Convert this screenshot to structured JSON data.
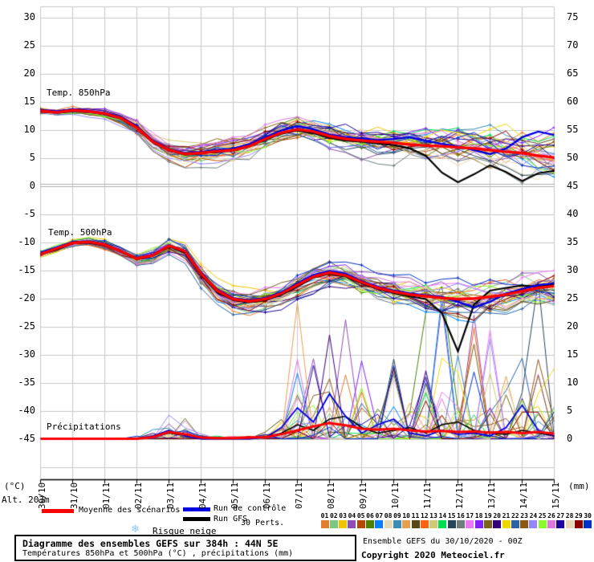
{
  "labels": {
    "temp850": "Temp. 850hPa",
    "temp500": "Temp. 500hPa",
    "precip": "Précipitations",
    "unit_left": "(°C)",
    "unit_right": "(mm)",
    "altitude": "Alt. 203m",
    "risque_neige": "Risque neige",
    "legend_mean": "Moyenne des scénarios",
    "legend_control": "Run de contrôle",
    "legend_gfs": "Run GFS",
    "legend_perts": "30 Perts.",
    "title": "Diagramme des ensembles GEFS sur 384h : 44N 5E",
    "subtitle": "Températures 850hPa et 500hPa (°C) , précipitations (mm)",
    "run_info": "Ensemble GEFS du 30/10/2020 - 00Z",
    "copyright": "Copyright 2020 Meteociel.fr"
  },
  "icons": {
    "snowflake": "❄"
  },
  "colors": {
    "mean": "#FF0000",
    "control": "#0000E0",
    "gfs": "#000000",
    "grid": "#C9C9C9",
    "grid_zero": "#ADADAD",
    "axis": "#000000",
    "snowflake": "#8CC8F0"
  },
  "axes": {
    "left_unit": "°C",
    "right_unit": "mm",
    "left_ticks": [
      30,
      25,
      20,
      15,
      10,
      5,
      0,
      -5,
      -10,
      -15,
      -20,
      -25,
      -30,
      -35,
      -40,
      -45
    ],
    "right_ticks": [
      75,
      70,
      65,
      60,
      55,
      50,
      45,
      40,
      35,
      30,
      25,
      20,
      15,
      10,
      5,
      0
    ],
    "dates": [
      "30/10",
      "31/10",
      "01/11",
      "02/11",
      "03/11",
      "04/11",
      "05/11",
      "06/11",
      "07/11",
      "08/11",
      "09/11",
      "10/11",
      "11/11",
      "12/11",
      "13/11",
      "14/11",
      "15/11"
    ]
  },
  "members": [
    {
      "id": "01",
      "color": "#E07F2D"
    },
    {
      "id": "02",
      "color": "#7DC87D"
    },
    {
      "id": "03",
      "color": "#EFC400"
    },
    {
      "id": "04",
      "color": "#8E4FB4"
    },
    {
      "id": "05",
      "color": "#B44A00"
    },
    {
      "id": "06",
      "color": "#4F8000"
    },
    {
      "id": "07",
      "color": "#0080FF"
    },
    {
      "id": "08",
      "color": "#E6D9B4"
    },
    {
      "id": "09",
      "color": "#3C8CB4"
    },
    {
      "id": "10",
      "color": "#E6A050"
    },
    {
      "id": "11",
      "color": "#5A4614"
    },
    {
      "id": "12",
      "color": "#F86414"
    },
    {
      "id": "13",
      "color": "#D2C878"
    },
    {
      "id": "14",
      "color": "#00DC50"
    },
    {
      "id": "15",
      "color": "#28465A"
    },
    {
      "id": "16",
      "color": "#6E7D7D"
    },
    {
      "id": "17",
      "color": "#EE78F8"
    },
    {
      "id": "18",
      "color": "#8221F8"
    },
    {
      "id": "19",
      "color": "#7D641E"
    },
    {
      "id": "20",
      "color": "#320078"
    },
    {
      "id": "21",
      "color": "#EED800"
    },
    {
      "id": "22",
      "color": "#2864A0"
    },
    {
      "id": "23",
      "color": "#8B5A14"
    },
    {
      "id": "24",
      "color": "#9687F8"
    },
    {
      "id": "25",
      "color": "#8CFA28"
    },
    {
      "id": "26",
      "color": "#DC78DC"
    },
    {
      "id": "27",
      "color": "#1E00A0"
    },
    {
      "id": "28",
      "color": "#E6D9B4"
    },
    {
      "id": "29",
      "color": "#8B0000"
    },
    {
      "id": "30",
      "color": "#0032C8"
    }
  ],
  "chart_data": [
    {
      "name": "temp_850hPa",
      "type": "line",
      "ylabel": "Température 850hPa (°C)",
      "x_step_hours": 12,
      "x_range_hours": [
        0,
        384
      ],
      "x_start": "30/10 00Z",
      "x_end": "15/11 00Z",
      "series": [
        {
          "name": "Moyenne des scénarios",
          "values": [
            13.5,
            13.2,
            13.6,
            13.4,
            13.0,
            12.2,
            10.5,
            8.0,
            6.5,
            5.8,
            6.0,
            6.3,
            6.5,
            7.2,
            8.5,
            9.6,
            10.2,
            9.8,
            9.0,
            8.5,
            8.2,
            8.0,
            7.8,
            7.5,
            7.3,
            7.2,
            7.0,
            6.8,
            6.5,
            6.2,
            6.0,
            5.5,
            5.2
          ]
        },
        {
          "name": "Run de contrôle",
          "values": [
            13.6,
            13.3,
            13.8,
            13.5,
            13.1,
            12.4,
            10.8,
            8.2,
            6.6,
            5.9,
            6.2,
            6.5,
            6.8,
            7.5,
            8.8,
            10.0,
            10.8,
            10.2,
            9.3,
            8.8,
            8.6,
            8.3,
            8.5,
            8.8,
            8.2,
            7.6,
            7.2,
            6.5,
            5.8,
            6.8,
            8.8,
            9.8,
            9.2
          ]
        },
        {
          "name": "Run GFS",
          "values": [
            13.5,
            13.3,
            13.7,
            13.4,
            12.9,
            12.1,
            10.4,
            7.9,
            6.4,
            5.7,
            5.9,
            6.2,
            6.4,
            7.1,
            8.4,
            9.4,
            10.0,
            9.5,
            8.7,
            8.2,
            8.0,
            7.7,
            7.4,
            6.8,
            5.5,
            2.5,
            0.8,
            2.2,
            3.8,
            2.6,
            1.0,
            2.4,
            2.8
          ]
        }
      ],
      "ensemble_spread_halfwidth": [
        0.7,
        0.7,
        0.8,
        0.9,
        1.0,
        1.2,
        1.5,
        1.8,
        2.0,
        2.0,
        2.0,
        2.1,
        2.2,
        2.2,
        2.3,
        2.4,
        2.5,
        2.5,
        2.6,
        2.8,
        3.0,
        3.1,
        3.2,
        3.3,
        3.5,
        3.6,
        3.8,
        4.0,
        4.2,
        4.4,
        4.6,
        4.8,
        5.0
      ]
    },
    {
      "name": "temp_500hPa",
      "type": "line",
      "ylabel": "Température 500hPa (°C)",
      "x_step_hours": 12,
      "x_range_hours": [
        0,
        384
      ],
      "series": [
        {
          "name": "Moyenne des scénarios",
          "values": [
            -12.0,
            -11.0,
            -10.0,
            -9.8,
            -10.3,
            -11.5,
            -12.8,
            -12.2,
            -10.5,
            -11.5,
            -15.5,
            -18.5,
            -20.0,
            -20.4,
            -20.0,
            -19.0,
            -17.5,
            -16.0,
            -15.3,
            -15.8,
            -17.0,
            -18.0,
            -18.7,
            -19.2,
            -19.5,
            -19.8,
            -20.0,
            -19.9,
            -19.6,
            -19.2,
            -18.6,
            -18.0,
            -17.7
          ]
        },
        {
          "name": "Run de contrôle",
          "values": [
            -11.8,
            -10.9,
            -9.9,
            -9.7,
            -10.2,
            -11.4,
            -12.7,
            -12.1,
            -10.4,
            -11.4,
            -15.3,
            -18.3,
            -19.8,
            -20.2,
            -19.8,
            -18.8,
            -17.2,
            -15.7,
            -15.0,
            -15.5,
            -16.8,
            -17.8,
            -18.5,
            -19.0,
            -19.3,
            -19.6,
            -20.5,
            -21.5,
            -20.5,
            -19.0,
            -18.2,
            -17.5,
            -17.2
          ]
        },
        {
          "name": "Run GFS",
          "values": [
            -12.0,
            -11.2,
            -10.1,
            -9.9,
            -10.4,
            -11.6,
            -12.9,
            -12.3,
            -10.6,
            -11.8,
            -15.8,
            -18.8,
            -20.2,
            -20.6,
            -20.2,
            -19.2,
            -17.8,
            -16.2,
            -15.5,
            -16.0,
            -17.2,
            -18.2,
            -18.9,
            -19.5,
            -20.0,
            -22.5,
            -29.3,
            -21.0,
            -18.5,
            -18.0,
            -17.6,
            -17.8,
            -17.3
          ]
        }
      ],
      "ensemble_spread_halfwidth": [
        0.8,
        0.8,
        0.8,
        0.9,
        1.0,
        1.1,
        1.3,
        1.5,
        1.6,
        1.8,
        2.0,
        2.0,
        2.0,
        2.0,
        2.1,
        2.2,
        2.3,
        2.4,
        2.5,
        2.6,
        2.8,
        3.0,
        3.0,
        3.2,
        3.3,
        3.4,
        3.5,
        3.7,
        3.8,
        4.0,
        4.2,
        4.4,
        4.5
      ]
    },
    {
      "name": "precipitations",
      "type": "line",
      "ylabel": "Précipitations (mm)",
      "x_step_hours": 12,
      "x_range_hours": [
        0,
        384
      ],
      "ylim": [
        0,
        80
      ],
      "series": [
        {
          "name": "Moyenne des scénarios",
          "values": [
            0,
            0,
            0,
            0,
            0,
            0,
            0,
            0.3,
            1.2,
            0.8,
            0.2,
            0.1,
            0.1,
            0.2,
            0.3,
            0.8,
            1.5,
            2.2,
            2.8,
            2.4,
            1.8,
            1.6,
            1.8,
            1.5,
            1.3,
            1.4,
            1.2,
            1.3,
            1.1,
            1.2,
            1.0,
            1.2,
            0.9
          ]
        },
        {
          "name": "Run de contrôle",
          "values": [
            0,
            0,
            0,
            0,
            0,
            0,
            0,
            0.5,
            1.5,
            0.5,
            0,
            0,
            0,
            0,
            0.2,
            2.0,
            5.5,
            3.0,
            8.0,
            4.0,
            1.0,
            2.5,
            3.5,
            1.0,
            0.5,
            1.5,
            0.8,
            1.0,
            0.5,
            2.0,
            6.0,
            1.5,
            0.5
          ]
        },
        {
          "name": "Run GFS",
          "values": [
            0,
            0,
            0,
            0,
            0,
            0,
            0,
            0.4,
            1.0,
            0.6,
            0,
            0,
            0,
            0,
            0.3,
            1.0,
            2.5,
            1.5,
            3.5,
            4.0,
            2.0,
            1.0,
            1.5,
            2.0,
            1.0,
            2.5,
            3.0,
            1.5,
            1.0,
            0.8,
            1.5,
            1.0,
            0.5
          ]
        }
      ],
      "ensemble_max_envelope": [
        0,
        0,
        0,
        0,
        0,
        0,
        0.5,
        2,
        5,
        3.5,
        1,
        0.5,
        0.5,
        1,
        2,
        6,
        24,
        14,
        20,
        27,
        16,
        10,
        14,
        12,
        22,
        26,
        25,
        22,
        20,
        24,
        26,
        27,
        12
      ]
    }
  ]
}
